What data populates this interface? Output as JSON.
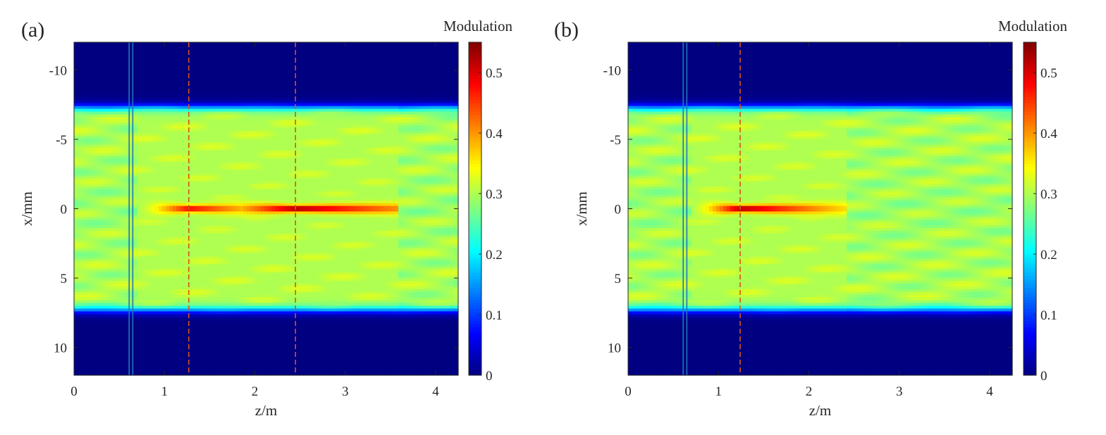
{
  "chart_data": [
    {
      "type": "heatmap",
      "panel_label": "(a)",
      "xlabel": "z/m",
      "ylabel": "x/mm",
      "colorbar_title": "Modulation",
      "xlim": [
        0,
        4.25
      ],
      "ylim": [
        -12,
        12
      ],
      "y_reversed": true,
      "x_ticks": [
        0,
        1,
        2,
        3,
        4
      ],
      "y_ticks": [
        -10,
        -5,
        0,
        5,
        10
      ],
      "colorbar_ticks": [
        0,
        0.1,
        0.2,
        0.3,
        0.4,
        0.5
      ],
      "colorbar_range": [
        0,
        0.55
      ],
      "colormap": "jet",
      "beam_half_width_mm": 7.3,
      "background_modulation": 0.3,
      "solid_lines_z": [
        0.61,
        0.65
      ],
      "solid_line_color": "#1f77b4",
      "dashed_lines_z": [
        1.27,
        2.45
      ],
      "dashed_line_color": "#d95319",
      "focus_regions": [
        {
          "z_start": 0.7,
          "z_peak": 1.27,
          "z_end": 1.9,
          "peak": 0.5
        },
        {
          "z_start": 1.3,
          "z_peak": 2.45,
          "z_end": 3.6,
          "peak": 0.55
        }
      ]
    },
    {
      "type": "heatmap",
      "panel_label": "(b)",
      "xlabel": "z/m",
      "ylabel": "x/mm",
      "colorbar_title": "Modulation",
      "xlim": [
        0,
        4.25
      ],
      "ylim": [
        -12,
        12
      ],
      "y_reversed": true,
      "x_ticks": [
        0,
        1,
        2,
        3,
        4
      ],
      "y_ticks": [
        -10,
        -5,
        0,
        5,
        10
      ],
      "colorbar_ticks": [
        0,
        0.1,
        0.2,
        0.3,
        0.4,
        0.5
      ],
      "colorbar_range": [
        0,
        0.55
      ],
      "colormap": "jet",
      "beam_half_width_mm": 7.3,
      "background_modulation": 0.3,
      "solid_lines_z": [
        0.61,
        0.65
      ],
      "solid_line_color": "#1f77b4",
      "dashed_lines_z": [
        1.24
      ],
      "dashed_line_color": "#d95319",
      "focus_regions": [
        {
          "z_start": 0.7,
          "z_peak": 1.24,
          "z_end": 2.4,
          "peak": 0.55
        }
      ]
    }
  ]
}
